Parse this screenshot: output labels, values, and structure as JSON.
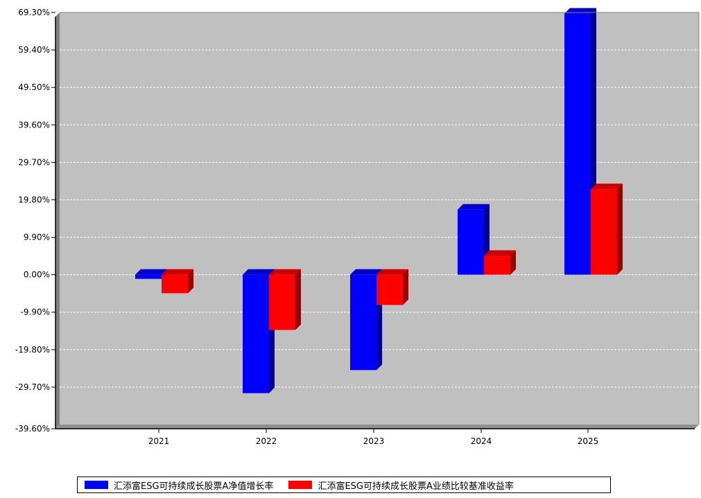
{
  "colors": {
    "plot_bg": "#c0c0c0",
    "series_1": "#0000ff",
    "series_2": "#ff0000",
    "axis": "#000000",
    "grid": "#ffffff"
  },
  "chart_data": {
    "type": "bar",
    "categories": [
      "2021",
      "2022",
      "2023",
      "2024",
      "2025"
    ],
    "series": [
      {
        "name": "汇添富ESG可持续成长股票A净值增长率",
        "values": [
          -1.1,
          -31.3,
          -25.2,
          17.2,
          69.0
        ]
      },
      {
        "name": "汇添富ESG可持续成长股票A业绩比较基准收益率",
        "values": [
          -4.9,
          -14.6,
          -8.0,
          5.0,
          22.6
        ]
      }
    ],
    "title": "",
    "xlabel": "",
    "ylabel": "",
    "ylim": [
      -39.6,
      69.3
    ],
    "yticks": [
      69.3,
      59.4,
      49.5,
      39.6,
      29.7,
      19.8,
      9.9,
      0.0,
      -9.9,
      -19.8,
      -29.7,
      -39.6
    ],
    "ytick_labels": [
      "69.30%",
      "59.40%",
      "49.50%",
      "39.60%",
      "29.70%",
      "19.80%",
      "9.90%",
      "0.00%",
      "-9.90%",
      "-19.80%",
      "-29.70%",
      "-39.60%"
    ],
    "grid": true,
    "legend_position": "bottom"
  }
}
